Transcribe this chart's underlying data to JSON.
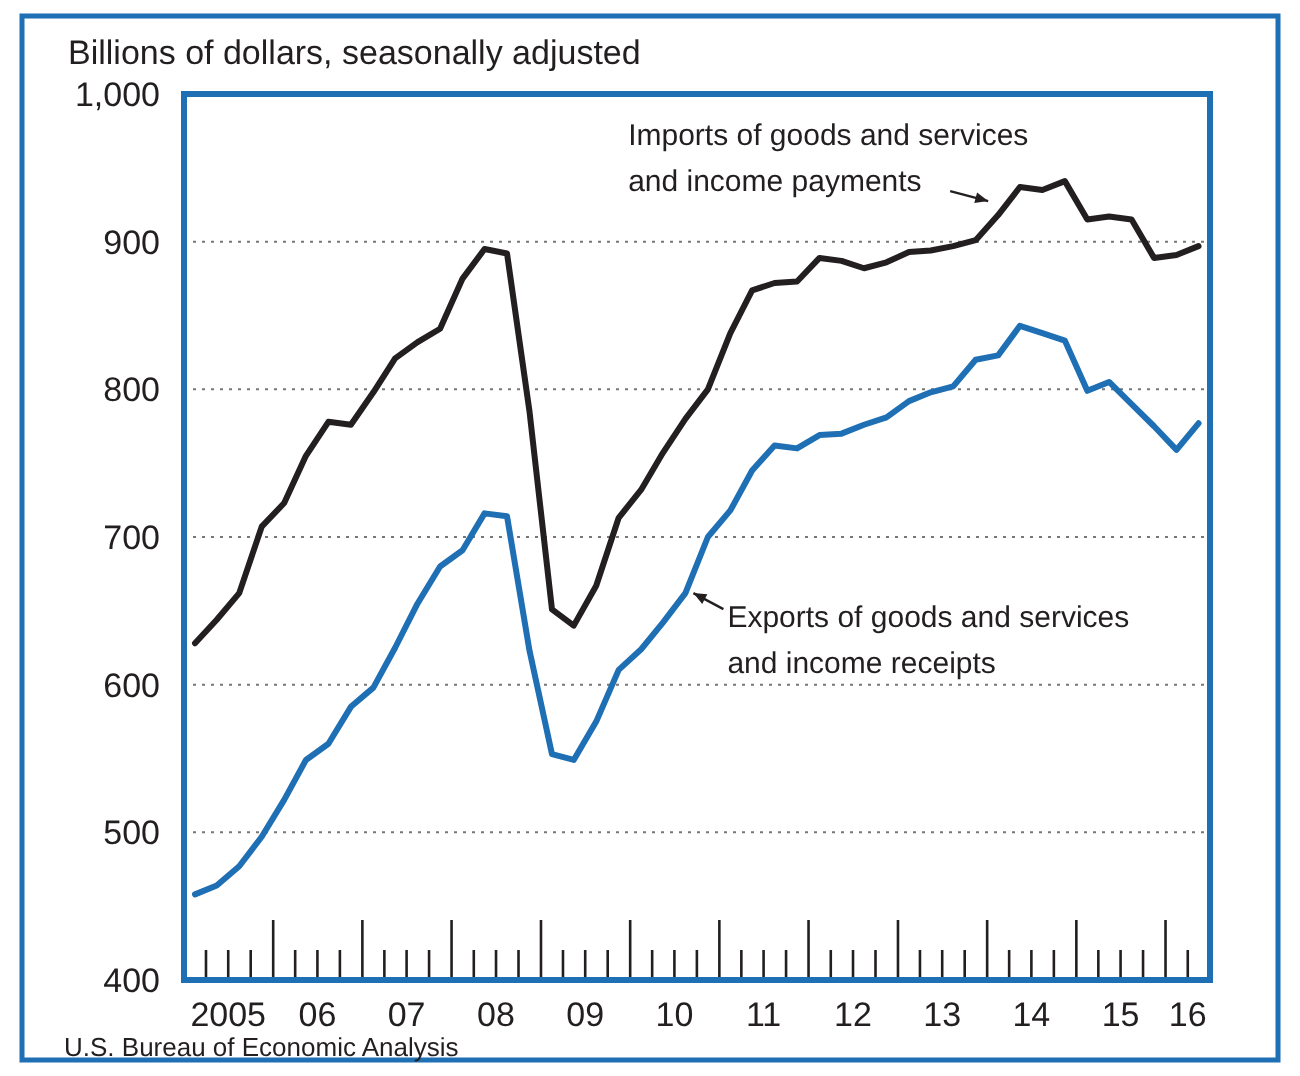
{
  "chart_data": {
    "type": "line",
    "ylabel": "Billions of dollars, seasonally adjusted",
    "x": [
      "2005-02-15",
      "2005-05-15",
      "2005-08-15",
      "2005-11-15",
      "2006-02-15",
      "2006-05-15",
      "2006-08-15",
      "2006-11-15",
      "2007-02-15",
      "2007-05-15",
      "2007-08-15",
      "2007-11-15",
      "2008-02-15",
      "2008-05-15",
      "2008-08-15",
      "2008-11-15",
      "2009-02-15",
      "2009-05-15",
      "2009-08-15",
      "2009-11-15",
      "2010-02-15",
      "2010-05-15",
      "2010-08-15",
      "2010-11-15",
      "2011-02-15",
      "2011-05-15",
      "2011-08-15",
      "2011-11-15",
      "2012-02-15",
      "2012-05-15",
      "2012-08-15",
      "2012-11-15",
      "2013-02-15",
      "2013-05-15",
      "2013-08-15",
      "2013-11-15",
      "2014-02-15",
      "2014-05-15",
      "2014-08-15",
      "2014-11-15",
      "2015-02-15",
      "2015-05-15",
      "2015-08-15",
      "2015-11-15",
      "2016-02-15",
      "2016-05-15"
    ],
    "series": [
      {
        "color": "#231f20",
        "values": [
          628,
          644,
          662,
          707,
          723,
          755,
          778,
          776,
          798,
          821,
          832,
          841,
          875,
          895,
          892,
          785,
          651,
          640,
          667,
          713,
          732,
          757,
          780,
          800,
          838,
          867,
          872,
          873,
          889,
          887,
          882,
          886,
          893,
          894,
          897,
          901,
          918,
          937,
          935,
          941,
          915,
          917,
          915,
          889,
          891,
          897
        ]
      },
      {
        "color": "#1f6fb4",
        "values": [
          458,
          464,
          477,
          497,
          522,
          549,
          560,
          585,
          598,
          625,
          655,
          680,
          691,
          716,
          714,
          623,
          553,
          549,
          575,
          610,
          624,
          642,
          662,
          700,
          718,
          745,
          762,
          760,
          769,
          770,
          776,
          781,
          792,
          798,
          802,
          820,
          823,
          843,
          838,
          833,
          799,
          805,
          790,
          775,
          759,
          777
        ]
      }
    ],
    "xlim": [
      "2005-01-01",
      "2016-07-01"
    ],
    "ylim": [
      400,
      1000
    ],
    "xticks": [
      {
        "value": "2005-04-01",
        "label": null
      },
      {
        "value": "2005-07-01",
        "label": "2005"
      },
      {
        "value": "2005-10-01",
        "label": null
      },
      {
        "value": "2006-01-01",
        "label": null
      },
      {
        "value": "2006-04-01",
        "label": null
      },
      {
        "value": "2006-07-01",
        "label": "06"
      },
      {
        "value": "2006-10-01",
        "label": null
      },
      {
        "value": "2007-01-01",
        "label": null
      },
      {
        "value": "2007-04-01",
        "label": null
      },
      {
        "value": "2007-07-01",
        "label": "07"
      },
      {
        "value": "2007-10-01",
        "label": null
      },
      {
        "value": "2008-01-01",
        "label": null
      },
      {
        "value": "2008-04-01",
        "label": null
      },
      {
        "value": "2008-07-01",
        "label": "08"
      },
      {
        "value": "2008-10-01",
        "label": null
      },
      {
        "value": "2009-01-01",
        "label": null
      },
      {
        "value": "2009-04-01",
        "label": null
      },
      {
        "value": "2009-07-01",
        "label": "09"
      },
      {
        "value": "2009-10-01",
        "label": null
      },
      {
        "value": "2010-01-01",
        "label": null
      },
      {
        "value": "2010-04-01",
        "label": null
      },
      {
        "value": "2010-07-01",
        "label": "10"
      },
      {
        "value": "2010-10-01",
        "label": null
      },
      {
        "value": "2011-01-01",
        "label": null
      },
      {
        "value": "2011-04-01",
        "label": null
      },
      {
        "value": "2011-07-01",
        "label": "11"
      },
      {
        "value": "2011-10-01",
        "label": null
      },
      {
        "value": "2012-01-01",
        "label": null
      },
      {
        "value": "2012-04-01",
        "label": null
      },
      {
        "value": "2012-07-01",
        "label": "12"
      },
      {
        "value": "2012-10-01",
        "label": null
      },
      {
        "value": "2013-01-01",
        "label": null
      },
      {
        "value": "2013-04-01",
        "label": null
      },
      {
        "value": "2013-07-01",
        "label": "13"
      },
      {
        "value": "2013-10-01",
        "label": null
      },
      {
        "value": "2014-01-01",
        "label": null
      },
      {
        "value": "2014-04-01",
        "label": null
      },
      {
        "value": "2014-07-01",
        "label": "14"
      },
      {
        "value": "2014-10-01",
        "label": null
      },
      {
        "value": "2015-01-01",
        "label": null
      },
      {
        "value": "2015-04-01",
        "label": null
      },
      {
        "value": "2015-07-01",
        "label": "15"
      },
      {
        "value": "2015-10-01",
        "label": null
      },
      {
        "value": "2016-01-01",
        "label": null
      },
      {
        "value": "2016-04-01",
        "label": "16"
      }
    ],
    "yticks": [
      400,
      500,
      600,
      700,
      800,
      900,
      {
        "value": 1000,
        "label": "1,000"
      }
    ],
    "grid": "y",
    "annotations": [
      {
        "text": "Imports of goods and services\nand income payments",
        "x": "2014-02-15",
        "y": 918
      },
      {
        "text": "Exports of goods and services\nand income receipts",
        "x": "2010-08-15",
        "y": 662
      },
      "U.S. Bureau of Economic Analysis"
    ]
  }
}
